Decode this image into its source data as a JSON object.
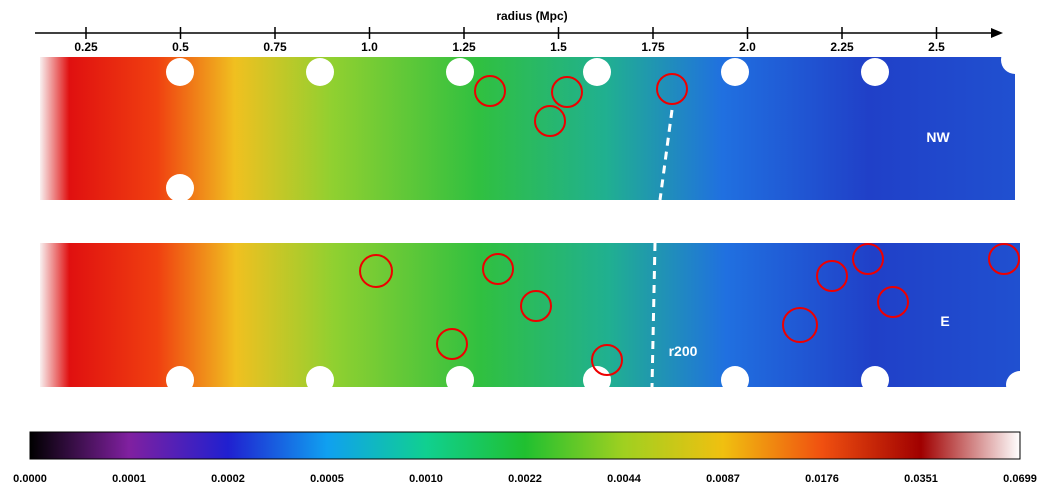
{
  "axis": {
    "title": "radius (Mpc)",
    "ticks": [
      "0.25",
      "0.5",
      "0.75",
      "1.0",
      "1.25",
      "1.5",
      "1.75",
      "2.0",
      "2.25",
      "2.5"
    ]
  },
  "labels": {
    "top_region": "NW",
    "bottom_region": "E",
    "r200": "r200"
  },
  "colorbar": {
    "ticks": [
      "0.0000",
      "0.0001",
      "0.0002",
      "0.0005",
      "0.0010",
      "0.0022",
      "0.0044",
      "0.0087",
      "0.0176",
      "0.0351",
      "0.0699"
    ]
  }
}
